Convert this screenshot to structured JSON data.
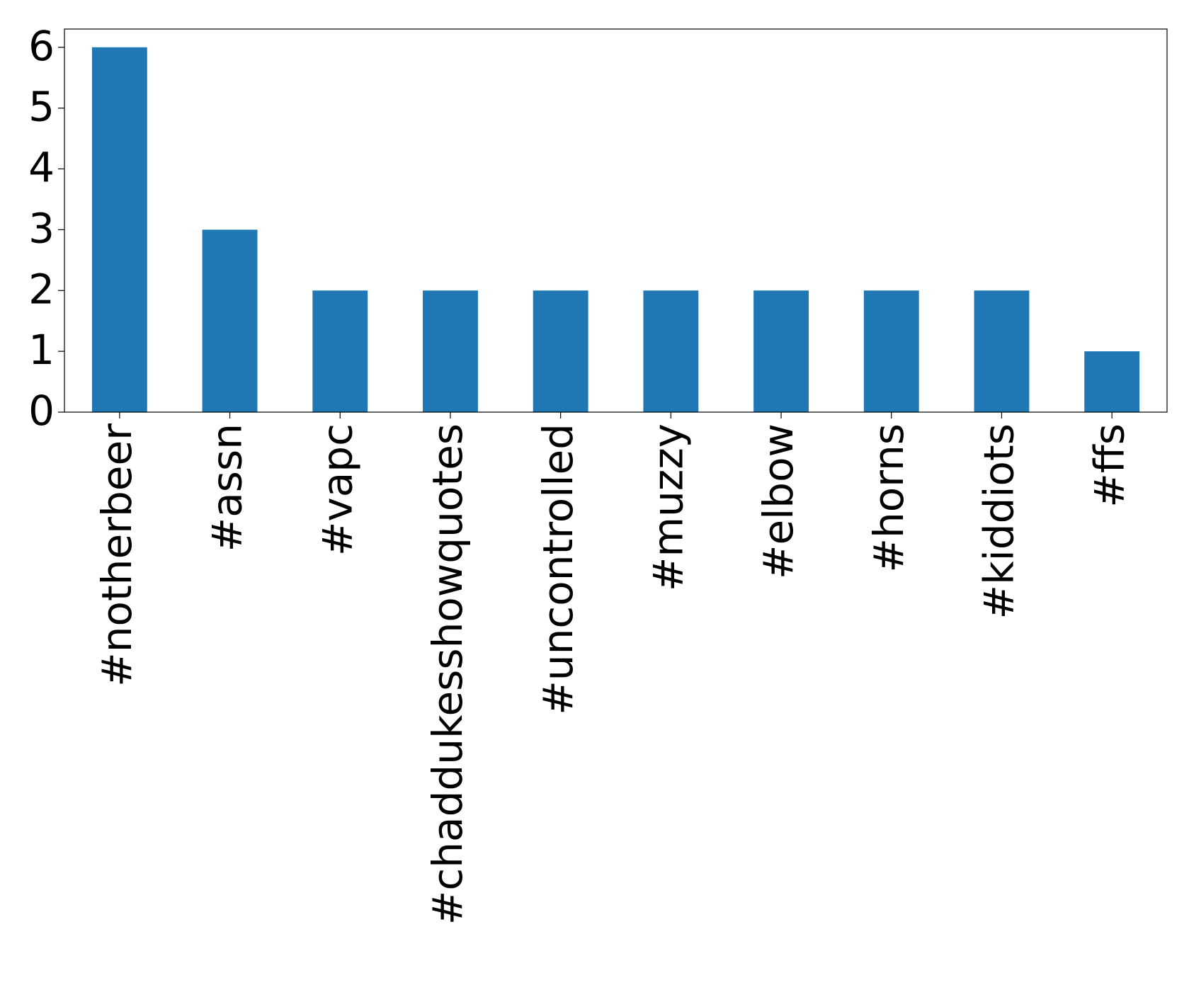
{
  "chart_data": {
    "type": "bar",
    "categories": [
      "#notherbeer",
      "#assn",
      "#vapc",
      "#chaddukesshowquotes",
      "#uncontrolled",
      "#muzzy",
      "#elbow",
      "#horns",
      "#kiddiots",
      "#ffs"
    ],
    "values": [
      6,
      3,
      2,
      2,
      2,
      2,
      2,
      2,
      2,
      1
    ],
    "color": "#1f77b4",
    "ylim": [
      0,
      6.3
    ],
    "yticks": [
      0,
      1,
      2,
      3,
      4,
      5,
      6
    ],
    "grid": false
  }
}
